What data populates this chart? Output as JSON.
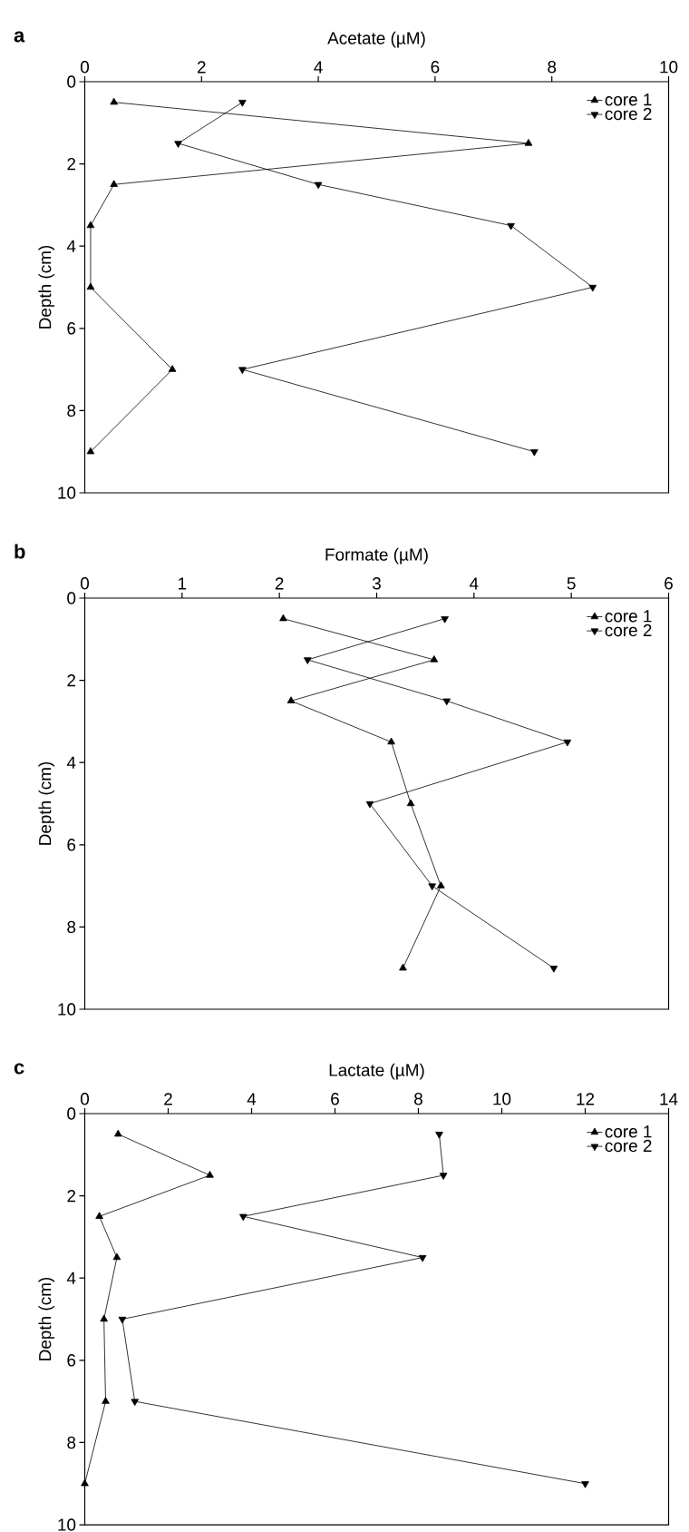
{
  "chart_data": [
    {
      "type": "line",
      "title": "a",
      "xlabel": "Acetate (µM)",
      "ylabel": "Depth (cm)",
      "xlim": [
        0,
        10
      ],
      "xticks": [
        0,
        2,
        4,
        6,
        8,
        10
      ],
      "ylim": [
        10,
        0
      ],
      "yticks": [
        0,
        2,
        4,
        6,
        8,
        10
      ],
      "legend": "top right",
      "series": [
        {
          "name": "core 1",
          "color": "#000000",
          "marker": "triangle",
          "x": [
            0.5,
            7.6,
            0.5,
            0.1,
            0.1,
            1.5,
            0.1
          ],
          "values": [
            0.5,
            1.5,
            2.5,
            3.5,
            5,
            7,
            9
          ]
        },
        {
          "name": "core 2",
          "color": "#000000",
          "marker": "triangle_down",
          "x": [
            2.7,
            1.6,
            4.0,
            7.3,
            8.7,
            2.7,
            7.7
          ],
          "values": [
            0.5,
            1.5,
            2.5,
            3.5,
            5,
            7,
            9
          ]
        }
      ]
    },
    {
      "type": "line",
      "title": "b",
      "xlabel": "Formate (µM)",
      "ylabel": "Depth (cm)",
      "xlim": [
        0,
        6
      ],
      "xticks": [
        0,
        1,
        2,
        3,
        4,
        5,
        6
      ],
      "ylim": [
        10,
        0
      ],
      "yticks": [
        0,
        2,
        4,
        6,
        8,
        10
      ],
      "legend": "top right",
      "series": [
        {
          "name": "core 1",
          "color": "#000000",
          "marker": "triangle",
          "x": [
            2.04,
            3.59,
            2.12,
            3.15,
            3.35,
            3.66,
            3.27
          ],
          "values": [
            0.5,
            1.5,
            2.5,
            3.5,
            5,
            7,
            9
          ]
        },
        {
          "name": "core 2",
          "color": "#000000",
          "marker": "triangle_down",
          "x": [
            3.7,
            2.29,
            3.72,
            4.96,
            2.93,
            3.57,
            4.82
          ],
          "values": [
            0.5,
            1.5,
            2.5,
            3.5,
            5,
            7,
            9
          ]
        }
      ]
    },
    {
      "type": "line",
      "title": "c",
      "xlabel": "Lactate (µM)",
      "ylabel": "Depth (cm)",
      "xlim": [
        0,
        14
      ],
      "xticks": [
        0,
        2,
        4,
        6,
        8,
        10,
        12,
        14
      ],
      "ylim": [
        10,
        0
      ],
      "yticks": [
        0,
        2,
        4,
        6,
        8,
        10
      ],
      "legend": "top right",
      "series": [
        {
          "name": "core 1",
          "color": "#000000",
          "marker": "triangle",
          "x": [
            0.8,
            3.0,
            0.35,
            0.77,
            0.46,
            0.5,
            0.0
          ],
          "values": [
            0.5,
            1.5,
            2.5,
            3.5,
            5,
            7,
            9
          ]
        },
        {
          "name": "core 2",
          "color": "#000000",
          "marker": "triangle_down",
          "x": [
            8.5,
            8.6,
            3.8,
            8.1,
            0.9,
            1.2,
            12.0
          ],
          "values": [
            0.5,
            1.5,
            2.5,
            3.5,
            5,
            7,
            9
          ]
        }
      ]
    }
  ]
}
